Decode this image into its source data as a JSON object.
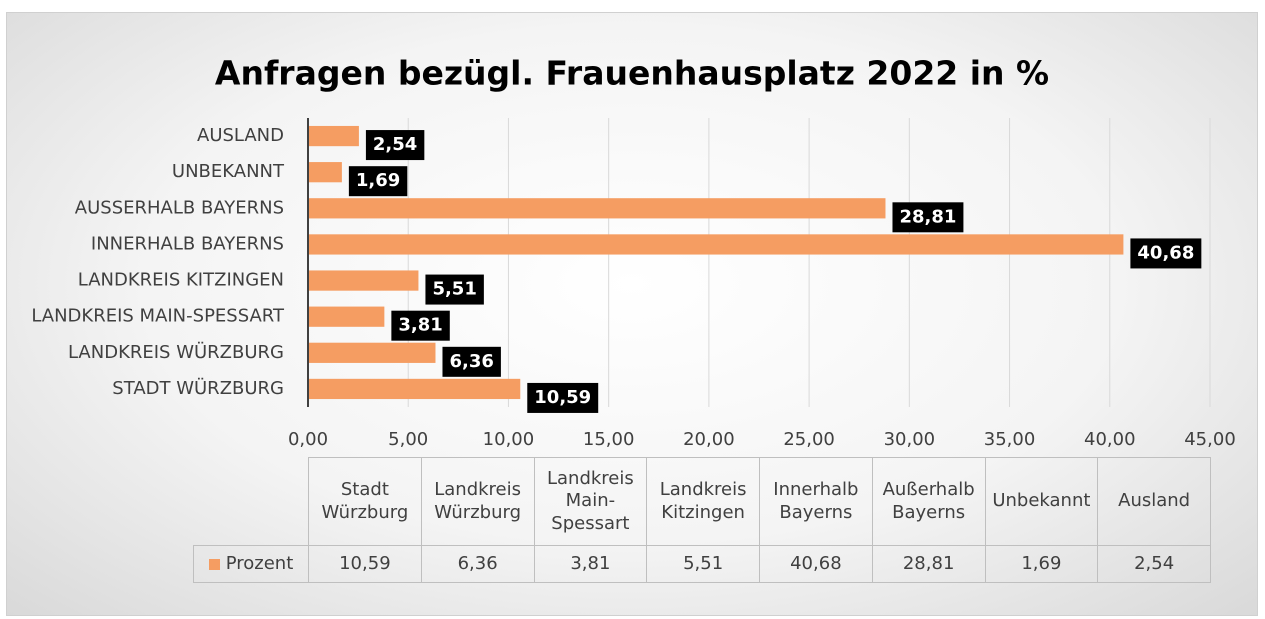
{
  "chart_data": {
    "type": "bar",
    "orientation": "horizontal",
    "title": "Anfragen bezügl. Frauenhausplatz 2022 in %",
    "categories": [
      "Stadt Würzburg",
      "Landkreis Würzburg",
      "Landkreis Main-Spessart",
      "Landkreis Kitzingen",
      "Innerhalb Bayerns",
      "Außerhalb Bayerns",
      "Unbekannt",
      "Ausland"
    ],
    "series": [
      {
        "name": "Prozent",
        "color": "#f59d62",
        "values": [
          10.59,
          6.36,
          3.81,
          5.51,
          40.68,
          28.81,
          1.69,
          2.54
        ],
        "value_labels": [
          "10,59",
          "6,36",
          "3,81",
          "5,51",
          "40,68",
          "28,81",
          "1,69",
          "2,54"
        ]
      }
    ],
    "xlim": [
      0,
      45
    ],
    "xticks": [
      {
        "value": 0,
        "label": "0,00"
      },
      {
        "value": 5,
        "label": "5,00"
      },
      {
        "value": 10,
        "label": "10,00"
      },
      {
        "value": 15,
        "label": "15,00"
      },
      {
        "value": 20,
        "label": "20,00"
      },
      {
        "value": 25,
        "label": "25,00"
      },
      {
        "value": 30,
        "label": "30,00"
      },
      {
        "value": 35,
        "label": "35,00"
      },
      {
        "value": 40,
        "label": "40,00"
      },
      {
        "value": 45,
        "label": "45,00"
      }
    ],
    "grid": true,
    "data_table": true
  }
}
